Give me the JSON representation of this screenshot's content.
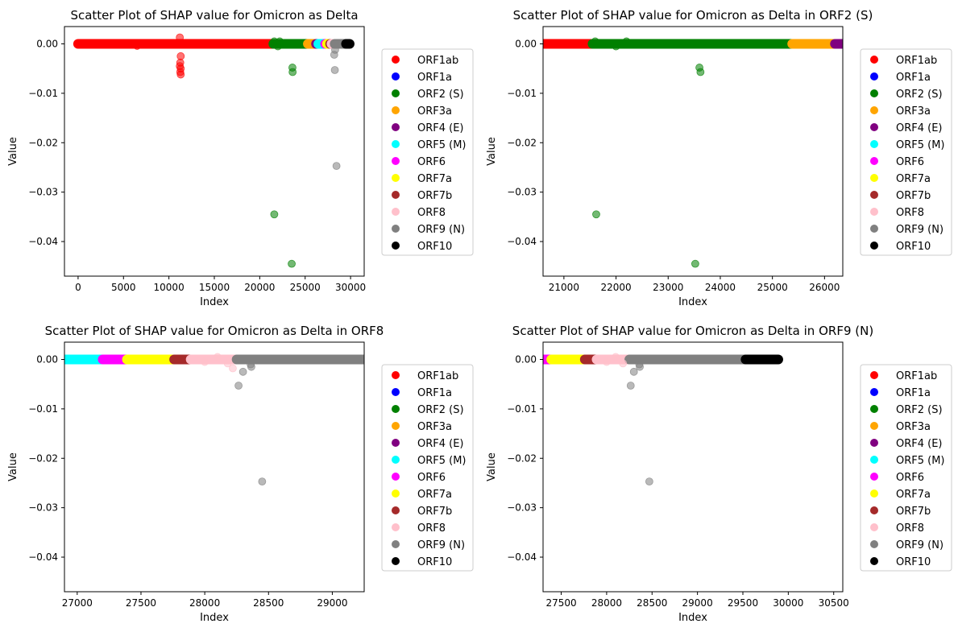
{
  "figure": {
    "legend_entries": [
      {
        "label": "ORF1ab",
        "color": "#ff0000"
      },
      {
        "label": "ORF1a",
        "color": "#0000ff"
      },
      {
        "label": "ORF2 (S)",
        "color": "#008000"
      },
      {
        "label": "ORF3a",
        "color": "#ffa500"
      },
      {
        "label": "ORF4 (E)",
        "color": "#800080"
      },
      {
        "label": "ORF5 (M)",
        "color": "#00ffff"
      },
      {
        "label": "ORF6",
        "color": "#ff00ff"
      },
      {
        "label": "ORF7a",
        "color": "#ffff00"
      },
      {
        "label": "ORF7b",
        "color": "#a52a2a"
      },
      {
        "label": "ORF8",
        "color": "#ffc0cb"
      },
      {
        "label": "ORF9 (N)",
        "color": "#808080"
      },
      {
        "label": "ORF10",
        "color": "#000000"
      }
    ]
  },
  "chart_data": [
    {
      "type": "scatter",
      "title": "Scatter Plot of SHAP value for Omicron as Delta",
      "xlabel": "Index",
      "ylabel": "Value",
      "xlim": [
        -1500,
        31500
      ],
      "ylim": [
        -0.047,
        0.0035
      ],
      "xticks": [
        0,
        5000,
        10000,
        15000,
        20000,
        25000,
        30000
      ],
      "yticks": [
        0.0,
        -0.01,
        -0.02,
        -0.03,
        -0.04
      ],
      "ytick_labels": [
        "0.00",
        "−0.01",
        "−0.02",
        "−0.03",
        "−0.04"
      ],
      "legend_position": "right",
      "segments": [
        {
          "orf": "ORF1ab",
          "x_start": 0,
          "x_end": 21500
        },
        {
          "orf": "ORF2 (S)",
          "x_start": 21500,
          "x_end": 25300
        },
        {
          "orf": "ORF3a",
          "x_start": 25300,
          "x_end": 26200
        },
        {
          "orf": "ORF4 (E)",
          "x_start": 26200,
          "x_end": 26450
        },
        {
          "orf": "ORF5 (M)",
          "x_start": 26450,
          "x_end": 27200
        },
        {
          "orf": "ORF6",
          "x_start": 27200,
          "x_end": 27400
        },
        {
          "orf": "ORF7a",
          "x_start": 27400,
          "x_end": 27750
        },
        {
          "orf": "ORF7b",
          "x_start": 27750,
          "x_end": 27900
        },
        {
          "orf": "ORF8",
          "x_start": 27900,
          "x_end": 28250
        },
        {
          "orf": "ORF9 (N)",
          "x_start": 28250,
          "x_end": 29500
        },
        {
          "orf": "ORF10",
          "x_start": 29500,
          "x_end": 29900
        }
      ],
      "points": [
        {
          "orf": "ORF1ab",
          "x": 11200,
          "y": 0.0013
        },
        {
          "orf": "ORF1ab",
          "x": 6500,
          "y": -0.0004
        },
        {
          "orf": "ORF1ab",
          "x": 11300,
          "y": -0.0025
        },
        {
          "orf": "ORF1ab",
          "x": 11250,
          "y": -0.0038
        },
        {
          "orf": "ORF1ab",
          "x": 11200,
          "y": -0.0045
        },
        {
          "orf": "ORF1ab",
          "x": 11300,
          "y": -0.005
        },
        {
          "orf": "ORF1ab",
          "x": 11250,
          "y": -0.0057
        },
        {
          "orf": "ORF1ab",
          "x": 11300,
          "y": -0.0062
        },
        {
          "orf": "ORF2 (S)",
          "x": 21600,
          "y": 0.0005
        },
        {
          "orf": "ORF2 (S)",
          "x": 22000,
          "y": -0.0005
        },
        {
          "orf": "ORF2 (S)",
          "x": 22200,
          "y": 0.0005
        },
        {
          "orf": "ORF2 (S)",
          "x": 23600,
          "y": -0.0048
        },
        {
          "orf": "ORF2 (S)",
          "x": 23620,
          "y": -0.0057
        },
        {
          "orf": "ORF2 (S)",
          "x": 21600,
          "y": -0.0345
        },
        {
          "orf": "ORF2 (S)",
          "x": 23520,
          "y": -0.0445
        },
        {
          "orf": "ORF9 (N)",
          "x": 28270,
          "y": -0.0053
        },
        {
          "orf": "ORF9 (N)",
          "x": 28200,
          "y": -0.0022
        },
        {
          "orf": "ORF9 (N)",
          "x": 28300,
          "y": -0.0012
        },
        {
          "orf": "ORF9 (N)",
          "x": 28450,
          "y": -0.0247
        }
      ]
    },
    {
      "type": "scatter",
      "title": "Scatter Plot of SHAP value for Omicron as Delta in ORF2 (S)",
      "xlabel": "Index",
      "ylabel": "Value",
      "xlim": [
        20600,
        26350
      ],
      "ylim": [
        -0.047,
        0.0035
      ],
      "xticks": [
        21000,
        22000,
        23000,
        24000,
        25000,
        26000
      ],
      "yticks": [
        0.0,
        -0.01,
        -0.02,
        -0.03,
        -0.04
      ],
      "ytick_labels": [
        "0.00",
        "−0.01",
        "−0.02",
        "−0.03",
        "−0.04"
      ],
      "legend_position": "right",
      "segments": [
        {
          "orf": "ORF1ab",
          "x_start": 20600,
          "x_end": 21550
        },
        {
          "orf": "ORF2 (S)",
          "x_start": 21550,
          "x_end": 25380
        },
        {
          "orf": "ORF3a",
          "x_start": 25380,
          "x_end": 26200
        },
        {
          "orf": "ORF4 (E)",
          "x_start": 26200,
          "x_end": 26350
        }
      ],
      "points": [
        {
          "orf": "ORF2 (S)",
          "x": 21600,
          "y": 0.0005
        },
        {
          "orf": "ORF2 (S)",
          "x": 22000,
          "y": -0.0005
        },
        {
          "orf": "ORF2 (S)",
          "x": 22200,
          "y": 0.0005
        },
        {
          "orf": "ORF2 (S)",
          "x": 23600,
          "y": -0.0048
        },
        {
          "orf": "ORF2 (S)",
          "x": 23620,
          "y": -0.0057
        },
        {
          "orf": "ORF2 (S)",
          "x": 21620,
          "y": -0.0345
        },
        {
          "orf": "ORF2 (S)",
          "x": 23520,
          "y": -0.0445
        }
      ]
    },
    {
      "type": "scatter",
      "title": "Scatter Plot of SHAP value for Omicron as Delta in ORF8",
      "xlabel": "Index",
      "ylabel": "Value",
      "xlim": [
        26900,
        29250
      ],
      "ylim": [
        -0.047,
        0.0035
      ],
      "xticks": [
        27000,
        27500,
        28000,
        28500,
        29000
      ],
      "yticks": [
        0.0,
        -0.01,
        -0.02,
        -0.03,
        -0.04
      ],
      "ytick_labels": [
        "0.00",
        "−0.01",
        "−0.02",
        "−0.03",
        "−0.04"
      ],
      "legend_position": "right",
      "segments": [
        {
          "orf": "ORF5 (M)",
          "x_start": 26900,
          "x_end": 27200
        },
        {
          "orf": "ORF6",
          "x_start": 27200,
          "x_end": 27390
        },
        {
          "orf": "ORF7a",
          "x_start": 27390,
          "x_end": 27760
        },
        {
          "orf": "ORF7b",
          "x_start": 27760,
          "x_end": 27890
        },
        {
          "orf": "ORF8",
          "x_start": 27890,
          "x_end": 28250
        },
        {
          "orf": "ORF9 (N)",
          "x_start": 28250,
          "x_end": 29250
        }
      ],
      "points": [
        {
          "orf": "ORF8",
          "x": 28000,
          "y": -0.0005
        },
        {
          "orf": "ORF8",
          "x": 28100,
          "y": 0.0005
        },
        {
          "orf": "ORF8",
          "x": 28180,
          "y": -0.0008
        },
        {
          "orf": "ORF8",
          "x": 28220,
          "y": -0.0018
        },
        {
          "orf": "ORF9 (N)",
          "x": 28300,
          "y": -0.0025
        },
        {
          "orf": "ORF9 (N)",
          "x": 28360,
          "y": -0.001
        },
        {
          "orf": "ORF9 (N)",
          "x": 28365,
          "y": -0.0015
        },
        {
          "orf": "ORF9 (N)",
          "x": 28265,
          "y": -0.0053
        },
        {
          "orf": "ORF9 (N)",
          "x": 28450,
          "y": -0.0247
        }
      ]
    },
    {
      "type": "scatter",
      "title": "Scatter Plot of SHAP value for Omicron as Delta in ORF9 (N)",
      "xlabel": "Index",
      "ylabel": "Value",
      "xlim": [
        27300,
        30600
      ],
      "ylim": [
        -0.047,
        0.0035
      ],
      "xticks": [
        27500,
        28000,
        28500,
        29000,
        29500,
        30000,
        30500
      ],
      "yticks": [
        0.0,
        -0.01,
        -0.02,
        -0.03,
        -0.04
      ],
      "ytick_labels": [
        "0.00",
        "−0.01",
        "−0.02",
        "−0.03",
        "−0.04"
      ],
      "legend_position": "right",
      "segments": [
        {
          "orf": "ORF6",
          "x_start": 27300,
          "x_end": 27390
        },
        {
          "orf": "ORF7a",
          "x_start": 27390,
          "x_end": 27760
        },
        {
          "orf": "ORF7b",
          "x_start": 27760,
          "x_end": 27890
        },
        {
          "orf": "ORF8",
          "x_start": 27890,
          "x_end": 28250
        },
        {
          "orf": "ORF9 (N)",
          "x_start": 28250,
          "x_end": 29530
        },
        {
          "orf": "ORF10",
          "x_start": 29530,
          "x_end": 29890
        }
      ],
      "points": [
        {
          "orf": "ORF8",
          "x": 28000,
          "y": -0.0005
        },
        {
          "orf": "ORF8",
          "x": 28100,
          "y": 0.0005
        },
        {
          "orf": "ORF8",
          "x": 28180,
          "y": -0.0008
        },
        {
          "orf": "ORF9 (N)",
          "x": 28300,
          "y": -0.0025
        },
        {
          "orf": "ORF9 (N)",
          "x": 28360,
          "y": -0.001
        },
        {
          "orf": "ORF9 (N)",
          "x": 28365,
          "y": -0.0015
        },
        {
          "orf": "ORF9 (N)",
          "x": 28265,
          "y": -0.0053
        },
        {
          "orf": "ORF9 (N)",
          "x": 28470,
          "y": -0.0247
        }
      ]
    }
  ]
}
